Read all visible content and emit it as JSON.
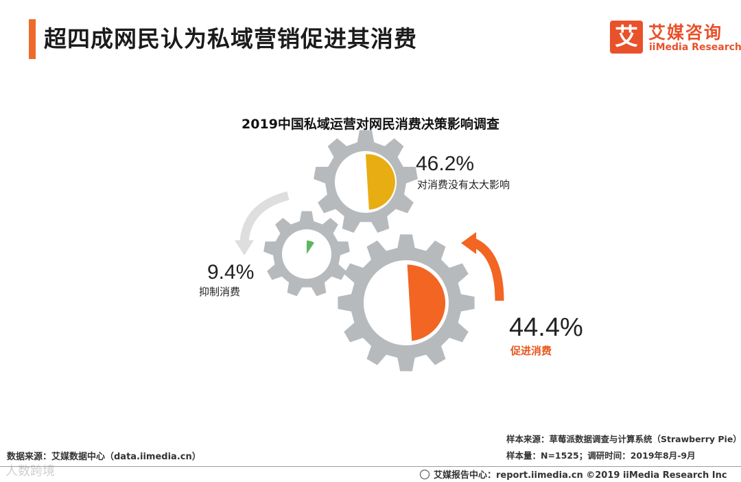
{
  "header": {
    "title": "超四成网民认为私域营销促进其消费",
    "logo_mark": "艾",
    "logo_cn": "艾媒咨询",
    "logo_en": "iiMedia Research"
  },
  "chart_data": {
    "type": "pie",
    "title": "2019中国私域运营对网民消费决策影响调查",
    "categories": [
      "对消费没有太大影响",
      "抑制消费",
      "促进消费"
    ],
    "values": [
      46.2,
      9.4,
      44.4
    ],
    "value_labels": [
      "46.2%",
      "9.4%",
      "44.4%"
    ],
    "unit": "%",
    "colors": [
      "#e8ad12",
      "#5cb85c",
      "#f26522"
    ]
  },
  "colors": {
    "accent": "#ee6a2c",
    "gear": "#b7babd",
    "arrow_gray": "#dedede",
    "arrow_orange": "#f26522"
  },
  "source": {
    "left": "数据来源：艾媒数据中心（data.iimedia.cn）",
    "sample_source": "样本来源：草莓派数据调查与计算系统（Strawberry Pie）",
    "sample_size": "样本量：N=1525；调研时间：2019年8月-9月"
  },
  "footer": {
    "text": "艾媒报告中心：report.iimedia.cn ©2019  iiMedia Research Inc"
  },
  "watermark": "人数跨境"
}
